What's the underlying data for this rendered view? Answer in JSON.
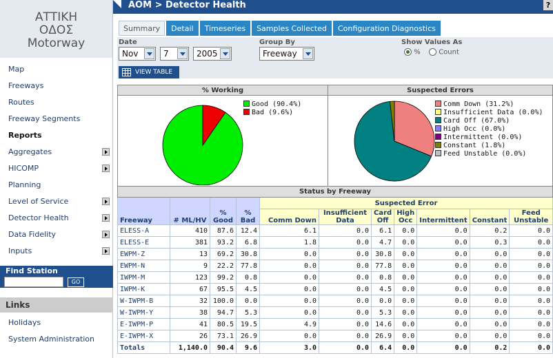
{
  "sidebar": {
    "logo_lines": [
      "ΑΤΤΙΚΗ",
      "ΟΔΟΣ",
      "Motorway"
    ],
    "items": [
      {
        "label": "Map",
        "arrow": false,
        "bold": false
      },
      {
        "label": "Freeways",
        "arrow": false,
        "bold": false
      },
      {
        "label": "Routes",
        "arrow": false,
        "bold": false
      },
      {
        "label": "Freeway Segments",
        "arrow": false,
        "bold": false
      },
      {
        "label": "Reports",
        "arrow": false,
        "bold": true
      },
      {
        "label": "Aggregates",
        "arrow": true,
        "bold": false
      },
      {
        "label": "HICOMP",
        "arrow": true,
        "bold": false
      },
      {
        "label": "Planning",
        "arrow": false,
        "bold": false
      },
      {
        "label": "Level of Service",
        "arrow": true,
        "bold": false
      },
      {
        "label": "Detector Health",
        "arrow": true,
        "bold": false
      },
      {
        "label": "Data Fidelity",
        "arrow": true,
        "bold": false
      },
      {
        "label": "Inputs",
        "arrow": true,
        "bold": false
      }
    ],
    "find_station": {
      "label": "Find Station",
      "value": "",
      "go_label": "GO"
    },
    "links": {
      "header": "Links",
      "items": [
        "Holidays",
        "System Administration"
      ]
    }
  },
  "header": {
    "breadcrumb": "AOM > Detector Health",
    "help": "?"
  },
  "tabs": [
    "Summary",
    "Detail",
    "Timeseries",
    "Samples Collected",
    "Configuration Diagnostics"
  ],
  "active_tab": 0,
  "filters": {
    "date_label": "Date",
    "month": "Nov",
    "day": "7",
    "year": "2005",
    "group_label": "Group By",
    "group_value": "Freeway",
    "show_label": "Show Values As",
    "percent_label": "%",
    "count_label": "Count",
    "selected": "percent",
    "view_table_label": "VIEW TABLE"
  },
  "charts": {
    "working": {
      "title": "% Working",
      "slices": [
        {
          "label": "Good (90.4%)",
          "value": 90.4,
          "color": "#00ee00"
        },
        {
          "label": "Bad (9.6%)",
          "value": 9.6,
          "color": "#ee0000"
        }
      ]
    },
    "errors": {
      "title": "Suspected Errors",
      "slices": [
        {
          "label": "Comm Down (31.2%)",
          "value": 31.2,
          "color": "#f08080"
        },
        {
          "label": "Insufficient Data (0.0%)",
          "value": 0.0,
          "color": "#ffff80"
        },
        {
          "label": "Card Off (67.0%)",
          "value": 67.0,
          "color": "#008080"
        },
        {
          "label": "High Occ (0.0%)",
          "value": 0.0,
          "color": "#8080ff"
        },
        {
          "label": "Intermittent (0.0%)",
          "value": 0.0,
          "color": "#800080"
        },
        {
          "label": "Constant (1.8%)",
          "value": 1.8,
          "color": "#808000"
        },
        {
          "label": "Feed Unstable (0.0%)",
          "value": 0.0,
          "color": "#c0c0c0"
        }
      ]
    }
  },
  "table": {
    "title": "Status by Freeway",
    "suspected_header": "Suspected Error",
    "headers": [
      "Freeway",
      "# ML/HV",
      "% Good",
      "% Bad",
      "Comm Down",
      "Insufficient Data",
      "Card Off",
      "High Occ",
      "Intermittent",
      "Constant",
      "Feed Unstable"
    ],
    "rows": [
      [
        "ELESS-A",
        "410",
        "87.6",
        "12.4",
        "6.1",
        "0.0",
        "6.1",
        "0.0",
        "0.0",
        "0.2",
        "0.0"
      ],
      [
        "ELESS-E",
        "381",
        "93.2",
        "6.8",
        "1.8",
        "0.0",
        "4.7",
        "0.0",
        "0.0",
        "0.3",
        "0.0"
      ],
      [
        "EWPM-Z",
        "13",
        "69.2",
        "30.8",
        "0.0",
        "0.0",
        "30.8",
        "0.0",
        "0.0",
        "0.0",
        "0.0"
      ],
      [
        "EWPM-N",
        "9",
        "22.2",
        "77.8",
        "0.0",
        "0.0",
        "77.8",
        "0.0",
        "0.0",
        "0.0",
        "0.0"
      ],
      [
        "IWPM-M",
        "123",
        "99.2",
        "0.8",
        "0.0",
        "0.0",
        "0.8",
        "0.0",
        "0.0",
        "0.0",
        "0.0"
      ],
      [
        "IWPM-K",
        "67",
        "95.5",
        "4.5",
        "0.0",
        "0.0",
        "4.5",
        "0.0",
        "0.0",
        "0.0",
        "0.0"
      ],
      [
        "W-IWPM-B",
        "32",
        "100.0",
        "0.0",
        "0.0",
        "0.0",
        "0.0",
        "0.0",
        "0.0",
        "0.0",
        "0.0"
      ],
      [
        "W-IWPM-Y",
        "38",
        "94.7",
        "5.3",
        "0.0",
        "0.0",
        "5.3",
        "0.0",
        "0.0",
        "0.0",
        "0.0"
      ],
      [
        "E-IWPM-P",
        "41",
        "80.5",
        "19.5",
        "4.9",
        "0.0",
        "14.6",
        "0.0",
        "0.0",
        "0.0",
        "0.0"
      ],
      [
        "E-IWPM-X",
        "26",
        "73.1",
        "26.9",
        "0.0",
        "0.0",
        "26.9",
        "0.0",
        "0.0",
        "0.0",
        "0.0"
      ]
    ],
    "totals": [
      "Totals",
      "1,140.0",
      "90.4",
      "9.6",
      "3.0",
      "0.0",
      "6.4",
      "0.0",
      "0.0",
      "0.2",
      "0.0"
    ]
  }
}
